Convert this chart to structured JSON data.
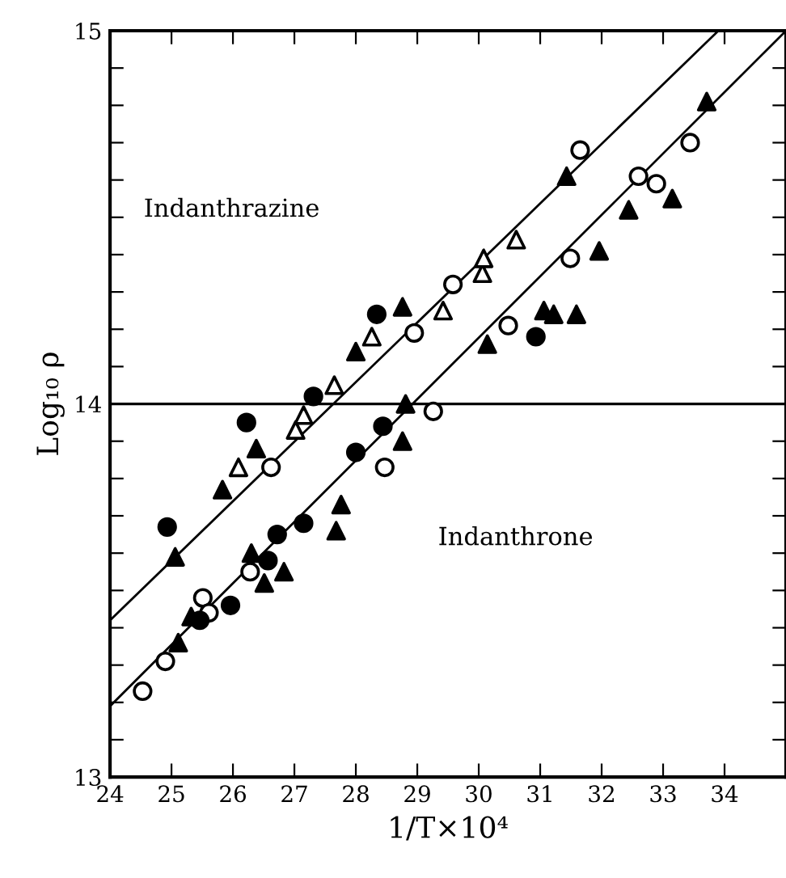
{
  "chart_data": {
    "type": "scatter",
    "xlabel": "1/T×10⁴",
    "ylabel": "Log₁₀ ρ",
    "xlim": [
      24,
      35
    ],
    "ylim": [
      13,
      15
    ],
    "xticks": [
      24,
      25,
      26,
      27,
      28,
      29,
      30,
      31,
      32,
      33,
      34
    ],
    "yticks": [
      13,
      {
        "value": 13.1,
        "label": null
      },
      {
        "value": 13.2,
        "label": null
      },
      {
        "value": 13.3,
        "label": null
      },
      {
        "value": 13.4,
        "label": null
      },
      {
        "value": 13.5,
        "label": null
      },
      {
        "value": 13.6,
        "label": null
      },
      {
        "value": 13.7,
        "label": null
      },
      {
        "value": 13.8,
        "label": null
      },
      {
        "value": 13.9,
        "label": null
      },
      14,
      {
        "value": 14.1,
        "label": null
      },
      {
        "value": 14.2,
        "label": null
      },
      {
        "value": 14.3,
        "label": null
      },
      {
        "value": 14.4,
        "label": null
      },
      {
        "value": 14.5,
        "label": null
      },
      {
        "value": 14.6,
        "label": null
      },
      {
        "value": 14.7,
        "label": null
      },
      {
        "value": 14.8,
        "label": null
      },
      {
        "value": 14.9,
        "label": null
      },
      15
    ],
    "grid": false,
    "legend": false,
    "ref_lines": [
      {
        "axis": "y",
        "value": 14,
        "color": "#000000"
      }
    ],
    "annotations": [
      "Indanthrazine",
      "Indanthrone"
    ],
    "series": [
      {
        "marker": "circle",
        "color": "#000000",
        "x": [
          24.93,
          26.22,
          27.31,
          28.34,
          25.46,
          25.96,
          26.57,
          26.72,
          27.15,
          28.0,
          28.44,
          30.93
        ],
        "values": [
          13.67,
          13.95,
          14.02,
          14.24,
          13.42,
          13.46,
          13.58,
          13.65,
          13.68,
          13.87,
          13.94,
          14.18
        ]
      },
      {
        "marker": "circle",
        "color": "#ffffff",
        "x": [
          26.62,
          28.95,
          29.58,
          31.65,
          24.53,
          24.9,
          25.51,
          25.61,
          26.28,
          28.47,
          29.26,
          30.48,
          31.49,
          32.6,
          32.89,
          33.44
        ],
        "values": [
          13.83,
          14.19,
          14.32,
          14.68,
          13.23,
          13.31,
          13.48,
          13.44,
          13.55,
          13.83,
          13.98,
          14.21,
          14.39,
          14.61,
          14.59,
          14.7
        ]
      },
      {
        "marker": "triangle",
        "color": "#000000",
        "x": [
          25.06,
          26.38,
          25.83,
          28.0,
          28.76,
          31.43,
          25.11,
          25.32,
          26.3,
          26.51,
          26.83,
          27.76,
          27.68,
          28.76,
          28.81,
          30.14,
          31.06,
          31.22,
          31.59,
          31.96,
          32.44,
          33.15,
          33.71
        ],
        "values": [
          13.59,
          13.88,
          13.77,
          14.14,
          14.26,
          14.61,
          13.36,
          13.43,
          13.6,
          13.52,
          13.55,
          13.73,
          13.66,
          13.9,
          14.0,
          14.16,
          14.25,
          14.24,
          14.24,
          14.41,
          14.52,
          14.55,
          14.81
        ]
      },
      {
        "marker": "triangle",
        "color": "#ffffff",
        "x": [
          26.09,
          27.02,
          27.15,
          27.65,
          28.26,
          29.42,
          30.06,
          30.08,
          30.61
        ],
        "values": [
          13.83,
          13.93,
          13.97,
          14.05,
          14.18,
          14.25,
          14.35,
          14.39,
          14.44
        ]
      },
      {
        "type": "line",
        "color": "#000000",
        "x": [
          24,
          33.9
        ],
        "values": [
          13.42,
          15
        ]
      },
      {
        "type": "line",
        "color": "#000000",
        "x": [
          24,
          35
        ],
        "values": [
          13.19,
          15
        ]
      }
    ]
  }
}
